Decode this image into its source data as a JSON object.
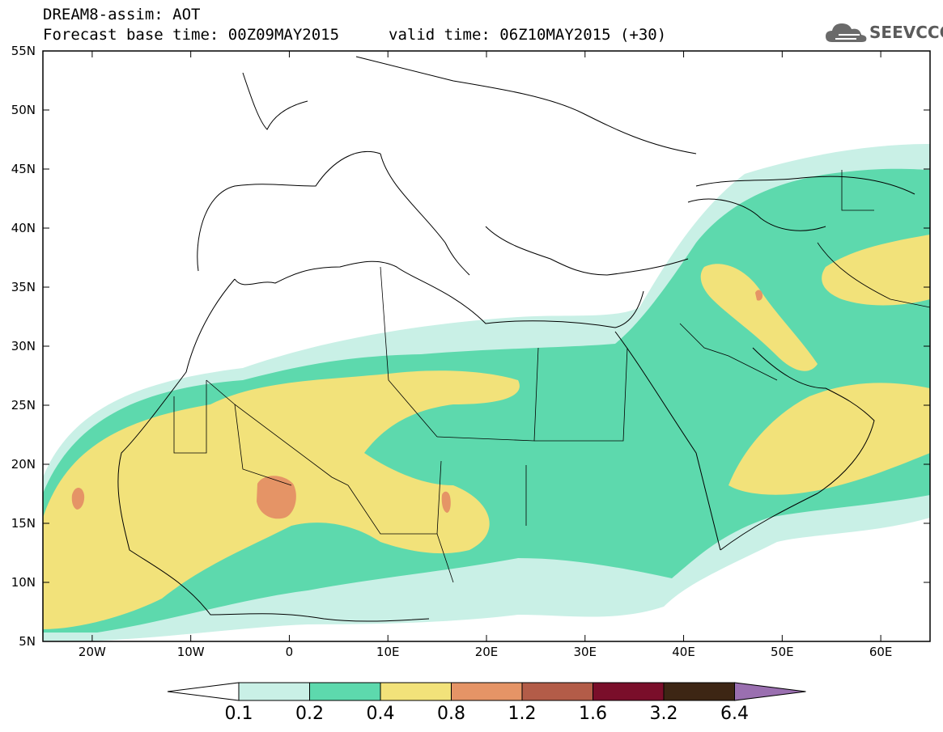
{
  "header": {
    "title": "DREAM8-assim: AOT",
    "base_time": "Forecast base time: 00Z09MAY2015",
    "valid_time": "valid time: 06Z10MAY2015 (+30)"
  },
  "logo": {
    "text": "SEEVCCC",
    "color": "#5b5b5b"
  },
  "map": {
    "lon_range": [
      -25,
      65
    ],
    "lat_range": [
      5,
      55
    ],
    "lat_ticks": [
      "55N",
      "50N",
      "45N",
      "40N",
      "35N",
      "30N",
      "25N",
      "20N",
      "15N",
      "10N",
      "5N"
    ],
    "lon_ticks": [
      "20W",
      "10W",
      "0",
      "10E",
      "20E",
      "30E",
      "40E",
      "50E",
      "60E"
    ]
  },
  "legend": {
    "labels": [
      "0.1",
      "0.2",
      "0.4",
      "0.8",
      "1.2",
      "1.6",
      "3.2",
      "6.4"
    ],
    "colors": [
      "#ffffff",
      "#c9f0e6",
      "#5dd9ad",
      "#f2e27a",
      "#e59466",
      "#b35c48",
      "#7a0e2a",
      "#3d2614",
      "#9a6fb0"
    ]
  }
}
